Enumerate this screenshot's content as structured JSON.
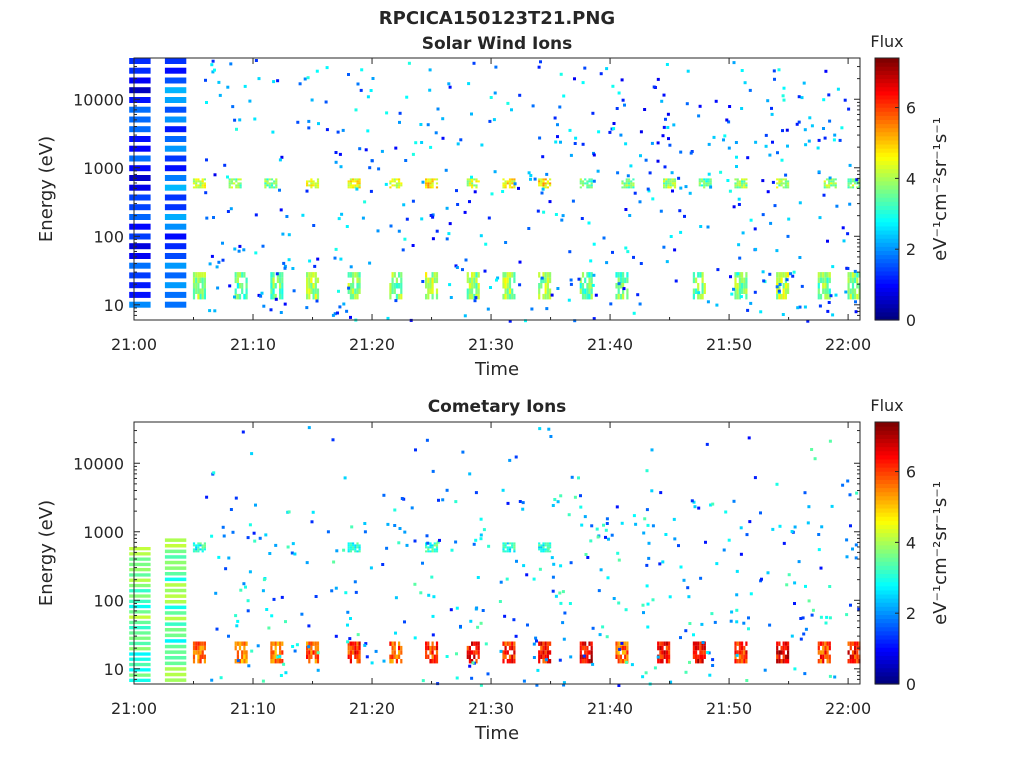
{
  "figure_title": "RPCICA150123T21.PNG",
  "chart_data": [
    {
      "type": "heatmap",
      "title": "Solar Wind Ions",
      "xlabel": "Time",
      "ylabel": "Energy (eV)",
      "yscale": "log",
      "xlim": [
        "21:00",
        "22:01"
      ],
      "ylim": [
        6,
        40000
      ],
      "xticks": [
        "21:00",
        "21:10",
        "21:20",
        "21:30",
        "21:40",
        "21:50",
        "22:00"
      ],
      "yticks": [
        "10",
        "100",
        "1000",
        "10000"
      ],
      "colorbar": {
        "title": "Flux",
        "label": "eV⁻¹cm⁻²sr⁻¹s⁻¹",
        "ticks": [
          "0",
          "2",
          "4",
          "6"
        ],
        "range": [
          0,
          7.4
        ],
        "colormap": "jet"
      },
      "grid": false,
      "cells": [
        {
          "t": "21:00:30",
          "e": [
            8,
            40000
          ],
          "flux": 1.2,
          "note": "band"
        },
        {
          "t": "21:03:30",
          "e": [
            8,
            40000
          ],
          "flux": 1.5,
          "note": "band"
        },
        {
          "t": "21:05:30",
          "e": [
            500,
            700
          ],
          "flux": 4.2
        },
        {
          "t": "21:08:30",
          "e": [
            500,
            700
          ],
          "flux": 3.8
        },
        {
          "t": "21:11:30",
          "e": [
            500,
            700
          ],
          "flux": 3.6
        },
        {
          "t": "21:15:00",
          "e": [
            500,
            700
          ],
          "flux": 4.4
        },
        {
          "t": "21:18:30",
          "e": [
            500,
            700
          ],
          "flux": 4.5
        },
        {
          "t": "21:22:00",
          "e": [
            500,
            700
          ],
          "flux": 4.3
        },
        {
          "t": "21:25:00",
          "e": [
            500,
            700
          ],
          "flux": 4.8
        },
        {
          "t": "21:28:30",
          "e": [
            500,
            700
          ],
          "flux": 4.2
        },
        {
          "t": "21:31:30",
          "e": [
            500,
            700
          ],
          "flux": 4.6
        },
        {
          "t": "21:34:30",
          "e": [
            500,
            700
          ],
          "flux": 4.8
        },
        {
          "t": "21:38:00",
          "e": [
            500,
            700
          ],
          "flux": 3.5
        },
        {
          "t": "21:41:30",
          "e": [
            500,
            700
          ],
          "flux": 3.7
        },
        {
          "t": "21:45:00",
          "e": [
            500,
            700
          ],
          "flux": 4.0
        },
        {
          "t": "21:48:00",
          "e": [
            500,
            700
          ],
          "flux": 3.4
        },
        {
          "t": "21:51:00",
          "e": [
            500,
            700
          ],
          "flux": 3.8
        },
        {
          "t": "21:54:30",
          "e": [
            500,
            700
          ],
          "flux": 4.0
        },
        {
          "t": "21:58:30",
          "e": [
            500,
            700
          ],
          "flux": 3.9
        },
        {
          "t": "22:00:30",
          "e": [
            500,
            700
          ],
          "flux": 3.8
        },
        {
          "t": "21:05:30",
          "e": [
            12,
            30
          ],
          "flux": 3.8
        },
        {
          "t": "21:09:00",
          "e": [
            12,
            30
          ],
          "flux": 3.4
        },
        {
          "t": "21:12:00",
          "e": [
            12,
            30
          ],
          "flux": 3.6
        },
        {
          "t": "21:15:00",
          "e": [
            12,
            30
          ],
          "flux": 4.0
        },
        {
          "t": "21:18:30",
          "e": [
            12,
            30
          ],
          "flux": 3.9
        },
        {
          "t": "21:22:00",
          "e": [
            12,
            30
          ],
          "flux": 3.7
        },
        {
          "t": "21:25:00",
          "e": [
            12,
            30
          ],
          "flux": 4.1
        },
        {
          "t": "21:28:30",
          "e": [
            12,
            30
          ],
          "flux": 3.8
        },
        {
          "t": "21:31:30",
          "e": [
            12,
            30
          ],
          "flux": 4.0
        },
        {
          "t": "21:34:30",
          "e": [
            12,
            30
          ],
          "flux": 3.9
        },
        {
          "t": "21:38:00",
          "e": [
            12,
            30
          ],
          "flux": 3.5
        },
        {
          "t": "21:41:00",
          "e": [
            12,
            30
          ],
          "flux": 3.6
        },
        {
          "t": "21:47:30",
          "e": [
            12,
            30
          ],
          "flux": 3.7
        },
        {
          "t": "21:51:00",
          "e": [
            12,
            30
          ],
          "flux": 3.8
        },
        {
          "t": "21:54:30",
          "e": [
            12,
            30
          ],
          "flux": 4.1
        },
        {
          "t": "21:58:00",
          "e": [
            12,
            30
          ],
          "flux": 3.6
        },
        {
          "t": "22:00:30",
          "e": [
            12,
            30
          ],
          "flux": 3.7
        }
      ]
    },
    {
      "type": "heatmap",
      "title": "Cometary Ions",
      "xlabel": "Time",
      "ylabel": "Energy (eV)",
      "yscale": "log",
      "xlim": [
        "21:00",
        "22:01"
      ],
      "ylim": [
        6,
        40000
      ],
      "xticks": [
        "21:00",
        "21:10",
        "21:20",
        "21:30",
        "21:40",
        "21:50",
        "22:00"
      ],
      "yticks": [
        "10",
        "100",
        "1000",
        "10000"
      ],
      "colorbar": {
        "title": "Flux",
        "label": "eV⁻¹cm⁻²sr⁻¹s⁻¹",
        "ticks": [
          "0",
          "2",
          "4",
          "6"
        ],
        "range": [
          0,
          7.4
        ],
        "colormap": "jet"
      },
      "grid": false,
      "cells": [
        {
          "t": "21:00:30",
          "e": [
            6,
            600
          ],
          "flux": 3.5,
          "note": "band"
        },
        {
          "t": "21:03:30",
          "e": [
            6,
            800
          ],
          "flux": 3.4,
          "note": "band"
        },
        {
          "t": "21:05:30",
          "e": [
            12,
            25
          ],
          "flux": 5.6
        },
        {
          "t": "21:09:00",
          "e": [
            12,
            25
          ],
          "flux": 5.4
        },
        {
          "t": "21:12:00",
          "e": [
            12,
            25
          ],
          "flux": 5.5
        },
        {
          "t": "21:15:00",
          "e": [
            12,
            25
          ],
          "flux": 5.8
        },
        {
          "t": "21:18:30",
          "e": [
            12,
            25
          ],
          "flux": 6.2
        },
        {
          "t": "21:22:00",
          "e": [
            12,
            25
          ],
          "flux": 5.8
        },
        {
          "t": "21:25:00",
          "e": [
            12,
            25
          ],
          "flux": 6.1
        },
        {
          "t": "21:28:30",
          "e": [
            12,
            25
          ],
          "flux": 6.4
        },
        {
          "t": "21:31:30",
          "e": [
            12,
            25
          ],
          "flux": 6.2
        },
        {
          "t": "21:34:30",
          "e": [
            12,
            25
          ],
          "flux": 6.3
        },
        {
          "t": "21:38:00",
          "e": [
            12,
            25
          ],
          "flux": 6.6
        },
        {
          "t": "21:41:00",
          "e": [
            12,
            25
          ],
          "flux": 5.7
        },
        {
          "t": "21:44:30",
          "e": [
            12,
            25
          ],
          "flux": 6.4
        },
        {
          "t": "21:47:30",
          "e": [
            12,
            25
          ],
          "flux": 6.5
        },
        {
          "t": "21:51:00",
          "e": [
            12,
            25
          ],
          "flux": 6.2
        },
        {
          "t": "21:54:30",
          "e": [
            12,
            25
          ],
          "flux": 6.6
        },
        {
          "t": "21:58:00",
          "e": [
            12,
            25
          ],
          "flux": 6.0
        },
        {
          "t": "22:00:30",
          "e": [
            12,
            25
          ],
          "flux": 6.3
        },
        {
          "t": "21:05:30",
          "e": [
            500,
            700
          ],
          "flux": 3.0
        },
        {
          "t": "21:18:30",
          "e": [
            500,
            700
          ],
          "flux": 3.1
        },
        {
          "t": "21:25:00",
          "e": [
            500,
            700
          ],
          "flux": 3.2
        },
        {
          "t": "21:31:30",
          "e": [
            500,
            700
          ],
          "flux": 3.0
        },
        {
          "t": "21:34:30",
          "e": [
            500,
            700
          ],
          "flux": 3.0
        }
      ]
    }
  ]
}
